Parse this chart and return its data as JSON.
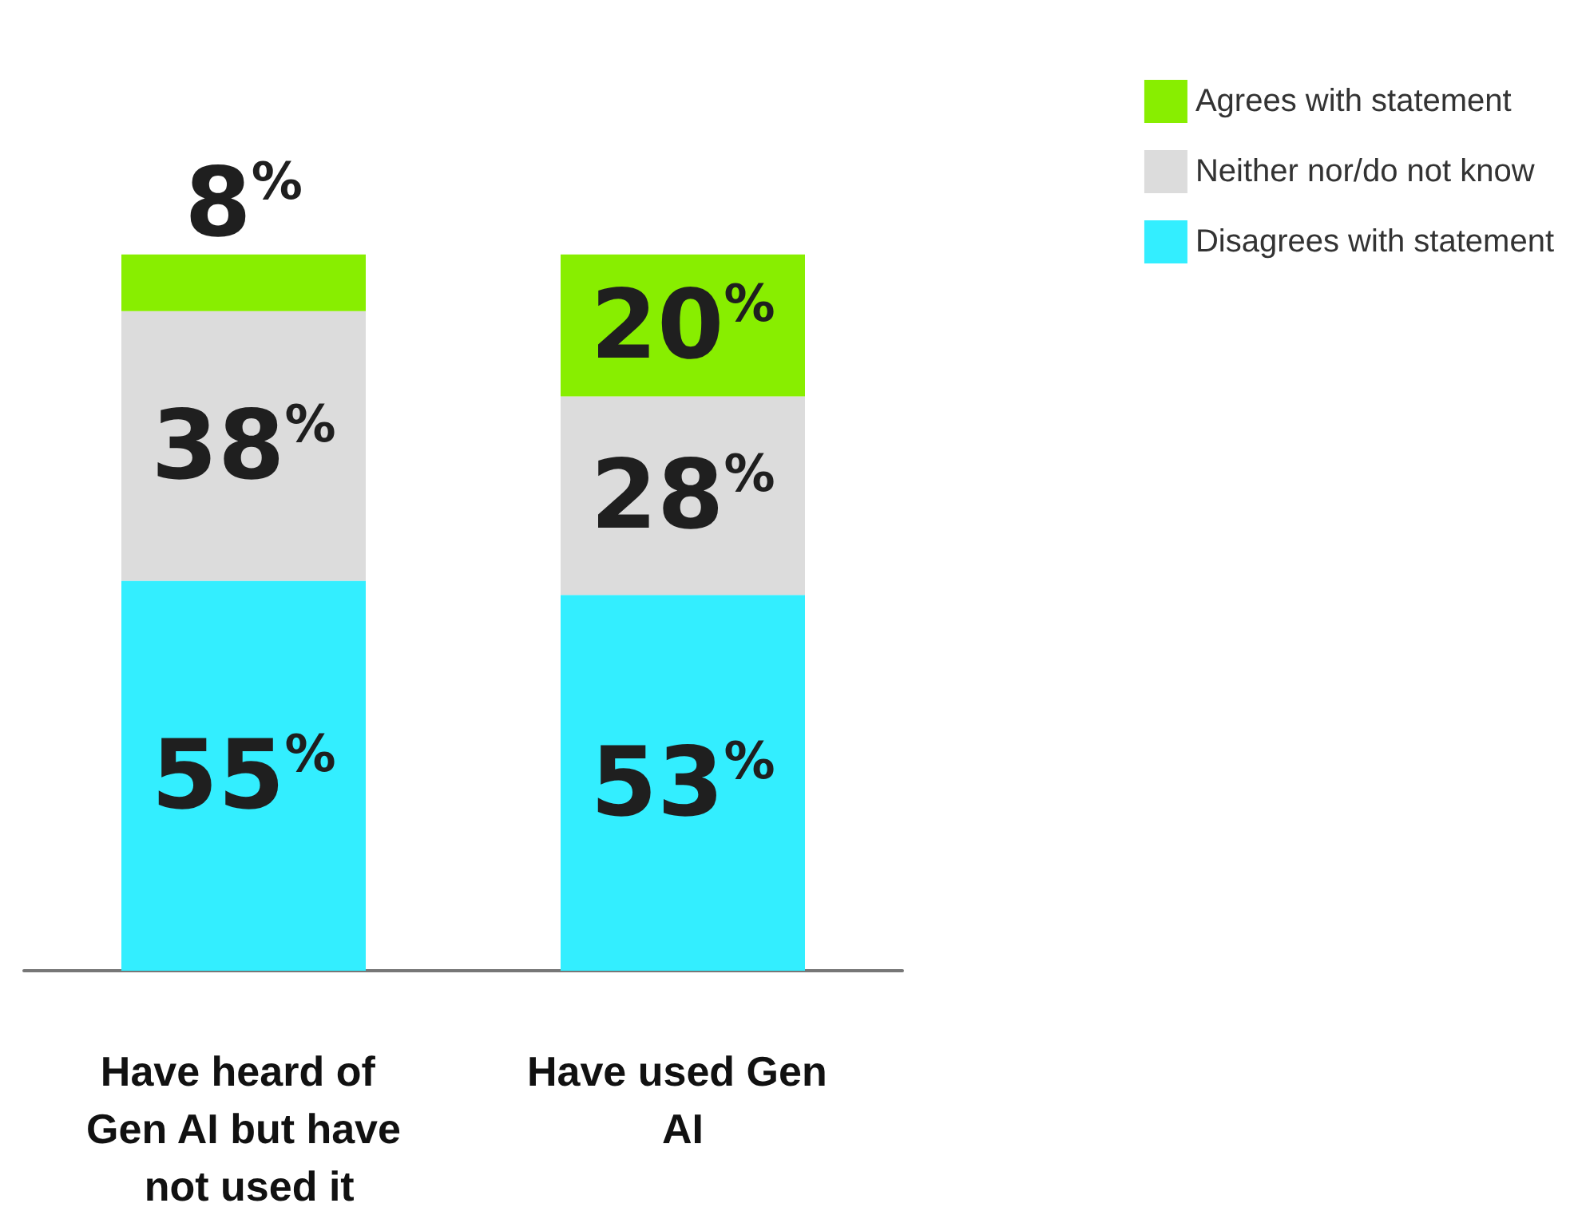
{
  "chart_data": {
    "type": "bar",
    "stacked": true,
    "categories": [
      "Have heard of Gen AI but have not used it",
      "Have used Gen AI"
    ],
    "series": [
      {
        "name": "Disagrees with statement",
        "color": "#33eeff",
        "values": [
          55,
          53
        ],
        "value_labels": [
          "55%",
          "53%"
        ]
      },
      {
        "name": "Neither nor/do not know",
        "color": "#dcdcdc",
        "values": [
          38,
          28
        ],
        "value_labels": [
          "38%",
          "28%"
        ]
      },
      {
        "name": "Agrees with statement",
        "color": "#88ee00",
        "values": [
          8,
          20
        ],
        "value_labels": [
          "8%",
          "20%"
        ]
      }
    ],
    "legend": "top right"
  }
}
